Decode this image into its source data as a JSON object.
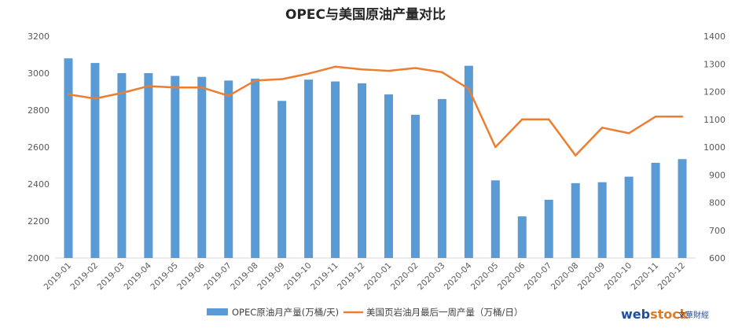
{
  "chart_data": {
    "type": "bar",
    "title": "OPEC与美国原油产量对比",
    "categories": [
      "2019-01",
      "2019-02",
      "2019-03",
      "2019-04",
      "2019-05",
      "2019-06",
      "2019-07",
      "2019-08",
      "2019-09",
      "2019-10",
      "2019-11",
      "2019-12",
      "2020-01",
      "2020-02",
      "2020-03",
      "2020-04",
      "2020-05",
      "2020-06",
      "2020-07",
      "2020-08",
      "2020-09",
      "2020-10",
      "2020-11",
      "2020-12"
    ],
    "series": [
      {
        "name": "OPEC原油月产量(万桶/天)",
        "type": "bar",
        "axis": "left",
        "color": "#5b9bd5",
        "values": [
          3080,
          3055,
          3000,
          3000,
          2985,
          2980,
          2960,
          2970,
          2850,
          2965,
          2955,
          2945,
          2885,
          2775,
          2860,
          3040,
          2420,
          2225,
          2315,
          2405,
          2410,
          2440,
          2515,
          2535
        ]
      },
      {
        "name": "美国页岩油月最后一周产量（万桶/日）",
        "type": "line",
        "axis": "right",
        "color": "#ed7d31",
        "values": [
          1190,
          1175,
          1195,
          1220,
          1215,
          1215,
          1185,
          1240,
          1245,
          1265,
          1290,
          1280,
          1275,
          1285,
          1270,
          1210,
          1000,
          1100,
          1100,
          970,
          1070,
          1050,
          1110,
          1110
        ]
      }
    ],
    "ylim_left": [
      2000,
      3200
    ],
    "yticks_left": [
      2000,
      2200,
      2400,
      2600,
      2800,
      3000,
      3200
    ],
    "ylim_right": [
      600,
      1400
    ],
    "yticks_right": [
      600,
      700,
      800,
      900,
      1000,
      1100,
      1200,
      1300,
      1400
    ],
    "grid": false,
    "legend_position": "bottom"
  },
  "watermark": {
    "web": "web",
    "stock": "stock",
    "cn": "文華財經"
  }
}
